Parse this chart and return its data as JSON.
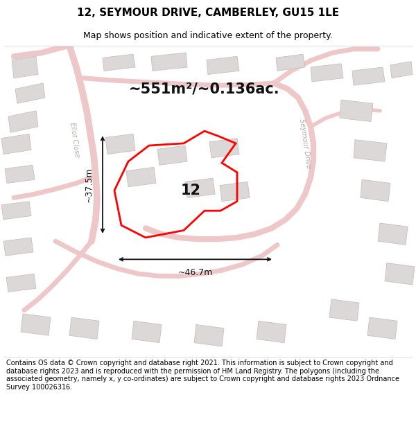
{
  "title": "12, SEYMOUR DRIVE, CAMBERLEY, GU15 1LE",
  "subtitle": "Map shows position and indicative extent of the property.",
  "area_text": "~551m²/~0.136ac.",
  "width_text": "~46.7m",
  "height_text": "~37.5m",
  "number_label": "12",
  "footer": "Contains OS data © Crown copyright and database right 2021. This information is subject to Crown copyright and database rights 2023 and is reproduced with the permission of HM Land Registry. The polygons (including the associated geometry, namely x, y co-ordinates) are subject to Crown copyright and database rights 2023 Ordnance Survey 100026316.",
  "map_bg": "#f2eeee",
  "road_color": "#eec8c8",
  "building_color": "#ddd8d8",
  "building_edge": "#c8c0c0",
  "property_color": "#ff0000",
  "arrow_color": "#111111",
  "title_color": "#000000",
  "footer_color": "#000000",
  "street_label_color": "#b8aaaa",
  "area_fontsize": 15,
  "number_fontsize": 15,
  "title_fontsize": 11,
  "subtitle_fontsize": 9,
  "footer_fontsize": 7,
  "measure_fontsize": 9
}
